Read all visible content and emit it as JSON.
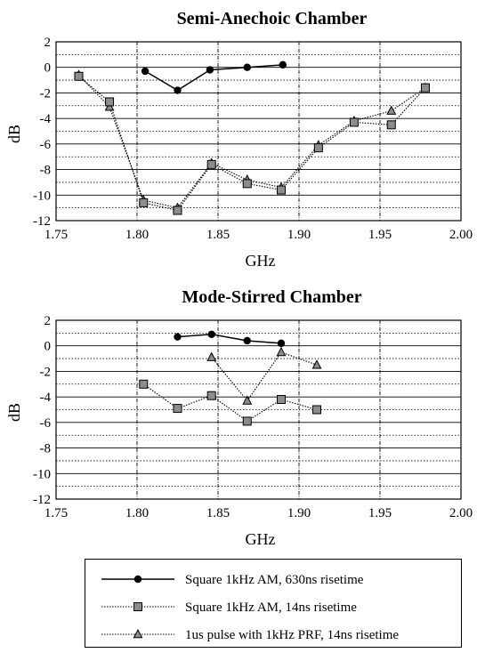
{
  "chart_data": [
    {
      "type": "line",
      "title": "Semi-Anechoic Chamber",
      "xlabel": "GHz",
      "ylabel": "dB",
      "xlim": [
        1.75,
        2.0
      ],
      "ylim": [
        -12,
        2
      ],
      "xticks": [
        "1.75",
        "1.80",
        "1.85",
        "1.90",
        "1.95",
        "2.00"
      ],
      "yticks": [
        "2",
        "0",
        "-2",
        "-4",
        "-6",
        "-8",
        "-10",
        "-12"
      ],
      "grid": true,
      "series": [
        {
          "name": "Square 1kHz AM, 630ns risetime",
          "x": [
            1.805,
            1.825,
            1.845,
            1.868,
            1.89
          ],
          "y": [
            -0.3,
            -1.8,
            -0.2,
            0.0,
            0.2
          ]
        },
        {
          "name": "Square 1kHz AM, 14ns risetime",
          "x": [
            1.764,
            1.783,
            1.804,
            1.825,
            1.846,
            1.868,
            1.889,
            1.912,
            1.934,
            1.957,
            1.978
          ],
          "y": [
            -0.7,
            -2.7,
            -10.6,
            -11.2,
            -7.6,
            -9.1,
            -9.6,
            -6.3,
            -4.3,
            -4.5,
            -1.6
          ]
        },
        {
          "name": "1us pulse with 1kHz PRF, 14ns risetime",
          "x": [
            1.764,
            1.783,
            1.804,
            1.825,
            1.846,
            1.868,
            1.889,
            1.912,
            1.934,
            1.957,
            1.978
          ],
          "y": [
            -0.6,
            -3.1,
            -10.4,
            -11.0,
            -7.5,
            -8.8,
            -9.4,
            -6.1,
            -4.2,
            -3.4,
            -1.6
          ]
        }
      ]
    },
    {
      "type": "line",
      "title": "Mode-Stirred Chamber",
      "xlabel": "GHz",
      "ylabel": "dB",
      "xlim": [
        1.75,
        2.0
      ],
      "ylim": [
        -12,
        2
      ],
      "xticks": [
        "1.75",
        "1.80",
        "1.85",
        "1.90",
        "1.95",
        "2.00"
      ],
      "yticks": [
        "2",
        "0",
        "-2",
        "-4",
        "-6",
        "-8",
        "-10",
        "-12"
      ],
      "grid": true,
      "series": [
        {
          "name": "Square 1kHz AM, 630ns risetime",
          "x": [
            1.825,
            1.846,
            1.868,
            1.889
          ],
          "y": [
            0.7,
            0.9,
            0.4,
            0.2
          ]
        },
        {
          "name": "Square 1kHz AM, 14ns risetime",
          "x": [
            1.804,
            1.825,
            1.846,
            1.868,
            1.889,
            1.911
          ],
          "y": [
            -3.0,
            -4.9,
            -3.9,
            -5.9,
            -4.2,
            -5.0
          ]
        },
        {
          "name": "1us pulse with 1kHz PRF, 14ns risetime",
          "x": [
            1.846,
            1.868,
            1.889,
            1.911
          ],
          "y": [
            -0.9,
            -4.3,
            -0.5,
            -1.5
          ]
        }
      ]
    }
  ],
  "legend": {
    "items": [
      {
        "label": "Square 1kHz AM, 630ns risetime",
        "marker": "circle",
        "line": "solid"
      },
      {
        "label": "Square 1kHz AM, 14ns risetime",
        "marker": "square",
        "line": "dotted"
      },
      {
        "label": "1us pulse with 1kHz PRF, 14ns risetime",
        "marker": "triangle",
        "line": "dotted"
      }
    ]
  },
  "colors": {
    "ink": "#000000",
    "marker_fill": "#8c8c8c",
    "grid": "#000000"
  }
}
